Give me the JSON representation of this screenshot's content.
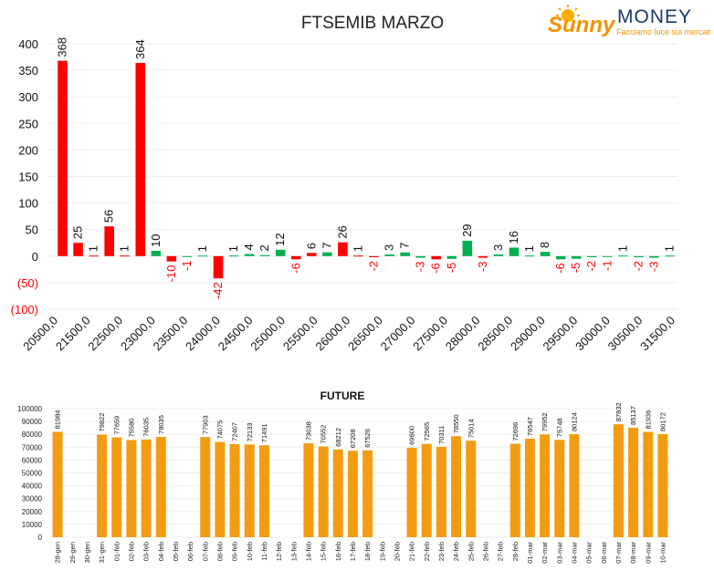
{
  "logo": {
    "brand_a": "Sunny",
    "brand_b": "MONEY",
    "tagline": "Facciamo luce sui mercati",
    "colors": {
      "orange": "#F39200",
      "navy": "#1B3A6B",
      "sun": "#F9B000"
    }
  },
  "chart_data": [
    {
      "type": "bar",
      "title": "FTSEMIB MARZO",
      "xlabel": "",
      "ylabel": "",
      "ylim": [
        -100,
        400
      ],
      "yticks": [
        "(100)",
        "(50)",
        "0",
        "50",
        "100",
        "150",
        "200",
        "250",
        "300",
        "350",
        "400"
      ],
      "xtick_labels": [
        "20500,0",
        "21500,0",
        "22500,0",
        "23000,0",
        "23500,0",
        "24000,0",
        "24500,0",
        "25000,0",
        "25500,0",
        "26000,0",
        "26500,0",
        "27000,0",
        "27500,0",
        "28000,0",
        "28500,0",
        "29000,0",
        "29500,0",
        "30000,0",
        "30500,0",
        "31500,0"
      ],
      "grid": true,
      "colors": {
        "positive_red": "#FF0000",
        "positive_green": "#00B050",
        "negative_label": "#FF0000"
      },
      "series": [
        {
          "values": [
            {
              "x": "20500,0",
              "v": 368,
              "color": "red"
            },
            {
              "x": "21000,0",
              "v": 25,
              "color": "red"
            },
            {
              "x": "21250,0",
              "v": 1,
              "color": "red"
            },
            {
              "x": "21500,0",
              "v": 56,
              "color": "red"
            },
            {
              "x": "21750,0",
              "v": 1,
              "color": "red"
            },
            {
              "x": "22000,0",
              "v": 364,
              "color": "red"
            },
            {
              "x": "22250,0",
              "v": 10,
              "color": "green"
            },
            {
              "x": "22500,0",
              "v": -10,
              "color": "red"
            },
            {
              "x": "22750,0",
              "v": -1,
              "color": "green"
            },
            {
              "x": "22750,0b",
              "v": 1,
              "color": "green"
            },
            {
              "x": "23000,0",
              "v": -42,
              "color": "red"
            },
            {
              "x": "23000,0b",
              "v": 1,
              "color": "green"
            },
            {
              "x": "23250,0",
              "v": 4,
              "color": "green"
            },
            {
              "x": "23375,0",
              "v": 2,
              "color": "green"
            },
            {
              "x": "23500,0",
              "v": 12,
              "color": "green"
            },
            {
              "x": "23500,0b",
              "v": -6,
              "color": "red"
            },
            {
              "x": "23750,0",
              "v": 6,
              "color": "red"
            },
            {
              "x": "23875,0",
              "v": 7,
              "color": "green"
            },
            {
              "x": "24000,0",
              "v": 26,
              "color": "red"
            },
            {
              "x": "24125,0",
              "v": 1,
              "color": "red"
            },
            {
              "x": "24250,0",
              "v": -2,
              "color": "red"
            },
            {
              "x": "24375,0",
              "v": 3,
              "color": "green"
            },
            {
              "x": "24500,0",
              "v": 7,
              "color": "green"
            },
            {
              "x": "24750,0",
              "v": -3,
              "color": "green"
            },
            {
              "x": "24875,0",
              "v": -6,
              "color": "red"
            },
            {
              "x": "25000,0",
              "v": -5,
              "color": "green"
            },
            {
              "x": "25250,0",
              "v": 29,
              "color": "green"
            },
            {
              "x": "25375,0",
              "v": -3,
              "color": "red"
            },
            {
              "x": "25500,0",
              "v": 3,
              "color": "green"
            },
            {
              "x": "25750,0",
              "v": 16,
              "color": "green"
            },
            {
              "x": "26000,0",
              "v": 1,
              "color": "green"
            },
            {
              "x": "26250,0",
              "v": 8,
              "color": "green"
            },
            {
              "x": "26500,0",
              "v": -6,
              "color": "green"
            },
            {
              "x": "26750,0",
              "v": -5,
              "color": "green"
            },
            {
              "x": "27000,0",
              "v": -2,
              "color": "green"
            },
            {
              "x": "27250,0",
              "v": -1,
              "color": "green"
            },
            {
              "x": "28000,0",
              "v": 1,
              "color": "green"
            },
            {
              "x": "28250,0",
              "v": -2,
              "color": "green"
            },
            {
              "x": "28500,0",
              "v": -3,
              "color": "green"
            },
            {
              "x": "29500,0",
              "v": 1,
              "color": "green"
            }
          ]
        }
      ]
    },
    {
      "type": "bar",
      "title": "FUTURE",
      "xlabel": "",
      "ylabel": "",
      "ylim": [
        0,
        100000
      ],
      "yticks": [
        "0",
        "10000",
        "20000",
        "30000",
        "40000",
        "50000",
        "60000",
        "70000",
        "80000",
        "90000",
        "100000"
      ],
      "grid": true,
      "color": "#F39C12",
      "categories": [
        "28-gen",
        "29-gen",
        "30-gen",
        "31-gen",
        "01-feb",
        "02-feb",
        "03-feb",
        "04-feb",
        "05-feb",
        "06-feb",
        "07-feb",
        "08-feb",
        "09-feb",
        "10-feb",
        "11-feb",
        "12-feb",
        "13-feb",
        "14-feb",
        "15-feb",
        "16-feb",
        "17-feb",
        "18-feb",
        "19-feb",
        "20-feb",
        "21-feb",
        "22-feb",
        "23-feb",
        "24-feb",
        "25-feb",
        "26-feb",
        "27-feb",
        "28-feb",
        "01-mar",
        "02-mar",
        "03-mar",
        "04-mar",
        "05-mar",
        "06-mar",
        "07-mar",
        "08-mar",
        "09-mar",
        "10-mar"
      ],
      "values": [
        81984,
        null,
        null,
        79822,
        77659,
        75580,
        76035,
        78035,
        null,
        null,
        77903,
        74075,
        72407,
        72133,
        71491,
        null,
        null,
        73038,
        70552,
        68212,
        67208,
        67526,
        null,
        null,
        69600,
        72565,
        70311,
        78550,
        75014,
        null,
        null,
        72696,
        76547,
        79952,
        75748,
        80124,
        null,
        null,
        87832,
        85137,
        81936,
        80172
      ]
    }
  ]
}
